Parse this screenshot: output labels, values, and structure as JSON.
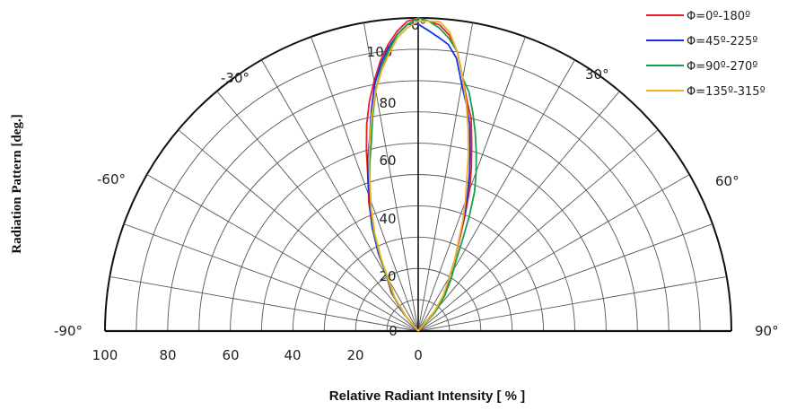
{
  "chart_data": {
    "type": "line",
    "subtype": "half-polar radiation pattern",
    "xlabel": "Relative Radiant Intensity [ % ]",
    "ylabel": "Radiation Pattern [deg.]",
    "radial_ticks": [
      "0",
      "20",
      "40",
      "60",
      "80",
      "100"
    ],
    "radial_tick_values": [
      0,
      20,
      40,
      60,
      80,
      100
    ],
    "bottom_ticks": [
      "100",
      "80",
      "60",
      "40",
      "20",
      "0"
    ],
    "bottom_tick_values": [
      100,
      80,
      60,
      40,
      20,
      0
    ],
    "angle_labels": [
      "-90°",
      "-60°",
      "-30°",
      "0°",
      "30°",
      "60°",
      "90°"
    ],
    "angle_label_values": [
      -90,
      -60,
      -30,
      0,
      30,
      60,
      90
    ],
    "angle_range": [
      -90,
      90
    ],
    "radial_range": [
      0,
      100
    ],
    "grid": true,
    "legend_position": "top-right",
    "series": [
      {
        "name": "Φ=0º-180º",
        "color": "#e8202a",
        "points": [
          [
            -45,
            0
          ],
          [
            -40,
            7
          ],
          [
            -35,
            15
          ],
          [
            -30,
            20
          ],
          [
            -27,
            28
          ],
          [
            -24,
            36
          ],
          [
            -21,
            44
          ],
          [
            -18,
            52
          ],
          [
            -16,
            60
          ],
          [
            -14,
            68
          ],
          [
            -12,
            75
          ],
          [
            -10,
            81
          ],
          [
            -8,
            87
          ],
          [
            -6,
            92
          ],
          [
            -4,
            96
          ],
          [
            -2,
            99
          ],
          [
            0,
            100
          ],
          [
            2,
            99
          ],
          [
            4,
            98
          ],
          [
            6,
            95
          ],
          [
            8,
            90
          ],
          [
            10,
            82
          ],
          [
            12,
            75
          ],
          [
            14,
            70
          ],
          [
            16,
            62
          ],
          [
            18,
            55
          ],
          [
            20,
            48
          ],
          [
            22,
            40
          ],
          [
            24,
            33
          ],
          [
            27,
            26
          ],
          [
            30,
            20
          ],
          [
            35,
            15
          ],
          [
            40,
            10
          ],
          [
            45,
            0
          ]
        ]
      },
      {
        "name": "Φ=45º-225º",
        "color": "#1a2ee8",
        "points": [
          [
            -45,
            0
          ],
          [
            -40,
            7
          ],
          [
            -35,
            14
          ],
          [
            -30,
            20
          ],
          [
            -27,
            28
          ],
          [
            -24,
            36
          ],
          [
            -21,
            43
          ],
          [
            -18,
            52
          ],
          [
            -16,
            58
          ],
          [
            -14,
            64
          ],
          [
            -12,
            72
          ],
          [
            -10,
            80
          ],
          [
            -8,
            86
          ],
          [
            -6,
            91
          ],
          [
            -4,
            95
          ],
          [
            -2,
            98
          ],
          [
            0,
            98
          ],
          [
            2,
            96
          ],
          [
            4,
            94
          ],
          [
            6,
            92
          ],
          [
            8,
            88
          ],
          [
            10,
            80
          ],
          [
            12,
            74
          ],
          [
            14,
            68
          ],
          [
            16,
            60
          ],
          [
            18,
            53
          ],
          [
            20,
            46
          ],
          [
            22,
            39
          ],
          [
            24,
            32
          ],
          [
            27,
            26
          ],
          [
            30,
            20
          ],
          [
            35,
            15
          ],
          [
            40,
            10
          ],
          [
            45,
            0
          ]
        ]
      },
      {
        "name": "Φ=90º-270º",
        "color": "#18a050",
        "points": [
          [
            -45,
            0
          ],
          [
            -40,
            6
          ],
          [
            -35,
            14
          ],
          [
            -30,
            20
          ],
          [
            -27,
            27
          ],
          [
            -24,
            35
          ],
          [
            -21,
            42
          ],
          [
            -18,
            50
          ],
          [
            -16,
            56
          ],
          [
            -14,
            62
          ],
          [
            -12,
            70
          ],
          [
            -10,
            78
          ],
          [
            -8,
            85
          ],
          [
            -6,
            90
          ],
          [
            -4,
            95
          ],
          [
            -2,
            98
          ],
          [
            0,
            100
          ],
          [
            2,
            99
          ],
          [
            4,
            97
          ],
          [
            6,
            94
          ],
          [
            8,
            90
          ],
          [
            10,
            82
          ],
          [
            12,
            78
          ],
          [
            14,
            72
          ],
          [
            16,
            66
          ],
          [
            18,
            60
          ],
          [
            20,
            54
          ],
          [
            22,
            48
          ],
          [
            24,
            40
          ],
          [
            26,
            32
          ],
          [
            28,
            26
          ],
          [
            32,
            20
          ],
          [
            37,
            14
          ],
          [
            42,
            8
          ],
          [
            45,
            0
          ]
        ]
      },
      {
        "name": "Φ=135º-315º",
        "color": "#f2b01e",
        "points": [
          [
            -45,
            0
          ],
          [
            -40,
            6
          ],
          [
            -35,
            13
          ],
          [
            -30,
            19
          ],
          [
            -27,
            26
          ],
          [
            -24,
            34
          ],
          [
            -21,
            42
          ],
          [
            -18,
            50
          ],
          [
            -16,
            57
          ],
          [
            -14,
            64
          ],
          [
            -12,
            71
          ],
          [
            -10,
            78
          ],
          [
            -8,
            84
          ],
          [
            -6,
            89
          ],
          [
            -4,
            94
          ],
          [
            -2,
            97
          ],
          [
            0,
            99
          ],
          [
            2,
            99
          ],
          [
            4,
            99
          ],
          [
            6,
            96
          ],
          [
            8,
            90
          ],
          [
            10,
            82
          ],
          [
            12,
            74
          ],
          [
            14,
            66
          ],
          [
            16,
            58
          ],
          [
            18,
            50
          ],
          [
            20,
            44
          ],
          [
            22,
            38
          ],
          [
            24,
            32
          ],
          [
            27,
            26
          ],
          [
            30,
            20
          ],
          [
            35,
            14
          ],
          [
            40,
            8
          ],
          [
            45,
            0
          ]
        ]
      }
    ]
  }
}
